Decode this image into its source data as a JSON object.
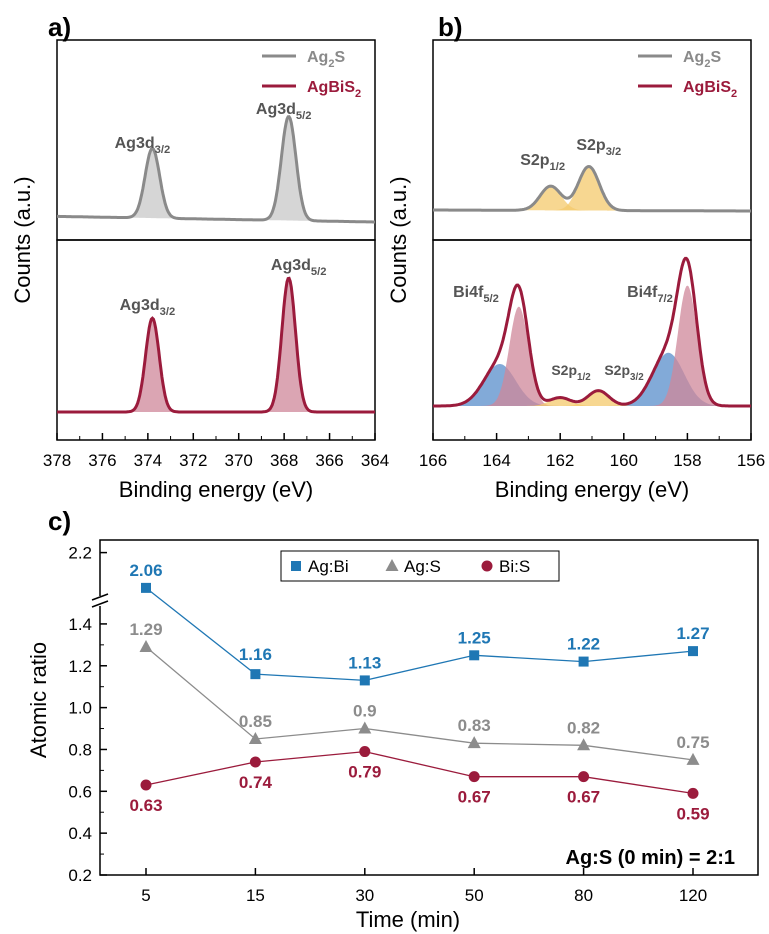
{
  "colors": {
    "ag2s_line": "#8a8a8a",
    "ag2s_fill": "#c8c8c8",
    "agbis2_line": "#9b1b3c",
    "agbis2_fill": "#cf8799",
    "s2p_fill": "#f4c96c",
    "bi_blue_fill": "#6c9bd1",
    "agbi": "#1f77b4",
    "ags": "#8c8c8c",
    "bis": "#9b1b3c"
  },
  "panel_a": {
    "label": "a)",
    "legend": [
      {
        "main": "Ag",
        "sub": "2",
        "rest": "S",
        "color_key": "ag2s_line"
      },
      {
        "main": "AgBiS",
        "sub": "2",
        "rest": "",
        "color_key": "agbis2_line"
      }
    ],
    "y_label": "Counts (a.u.)",
    "x_label": "Binding energy (eV)",
    "x_ticks": [
      "378",
      "376",
      "374",
      "372",
      "370",
      "368",
      "366",
      "364"
    ],
    "x_range": [
      378,
      364
    ],
    "top_peaks": [
      {
        "label": "Ag3d",
        "sub": "3/2",
        "position_ev": 373.8
      },
      {
        "label": "Ag3d",
        "sub": "5/2",
        "position_ev": 367.8
      }
    ],
    "bottom_peaks": [
      {
        "label": "Ag3d",
        "sub": "3/2",
        "position_ev": 373.8
      },
      {
        "label": "Ag3d",
        "sub": "5/2",
        "position_ev": 367.8
      }
    ]
  },
  "panel_b": {
    "label": "b)",
    "legend": [
      {
        "main": "Ag",
        "sub": "2",
        "rest": "S",
        "color_key": "ag2s_line"
      },
      {
        "main": "AgBiS",
        "sub": "2",
        "rest": "",
        "color_key": "agbis2_line"
      }
    ],
    "y_label": "Counts (a.u.)",
    "x_label": "Binding energy (eV)",
    "x_ticks": [
      "166",
      "164",
      "162",
      "160",
      "158",
      "156"
    ],
    "x_range": [
      166,
      156
    ],
    "top_peaks": [
      {
        "label": "S2p",
        "sub": "1/2",
        "position_ev": 162.3
      },
      {
        "label": "S2p",
        "sub": "3/2",
        "position_ev": 161.1
      }
    ],
    "bottom_peaks": [
      {
        "label": "Bi4f",
        "sub": "5/2",
        "position_ev": 163.3
      },
      {
        "label": "S2p",
        "sub": "1/2",
        "position_ev": 162.0
      },
      {
        "label": "S2p",
        "sub": "3/2",
        "position_ev": 160.8
      },
      {
        "label": "Bi4f",
        "sub": "7/2",
        "position_ev": 158.0
      }
    ]
  },
  "chart_data": {
    "type": "line",
    "panel_label": "c)",
    "xlabel": "Time (min)",
    "ylabel": "Atomic ratio",
    "categories": [
      "5",
      "15",
      "30",
      "50",
      "80",
      "120"
    ],
    "y_ticks_lower": [
      "0.2",
      "0.4",
      "0.6",
      "0.8",
      "1.0",
      "1.2",
      "1.4"
    ],
    "y_ticks_upper": [
      "2.2"
    ],
    "ylim_lower": [
      0.2,
      1.5
    ],
    "ylim_upper": [
      2.0,
      2.25
    ],
    "axis_break": true,
    "legend_position": "top-center",
    "annotation": "Ag:S (0 min) = 2:1",
    "series": [
      {
        "name": "Ag:Bi",
        "marker": "square",
        "color_key": "agbi",
        "values": [
          2.06,
          1.16,
          1.13,
          1.25,
          1.22,
          1.27
        ],
        "labels": [
          "2.06",
          "1.16",
          "1.13",
          "1.25",
          "1.22",
          "1.27"
        ]
      },
      {
        "name": "Ag:S",
        "marker": "triangle",
        "color_key": "ags",
        "values": [
          1.29,
          0.85,
          0.9,
          0.83,
          0.82,
          0.75
        ],
        "labels": [
          "1.29",
          "0.85",
          "0.9",
          "0.83",
          "0.82",
          "0.75"
        ]
      },
      {
        "name": "Bi:S",
        "marker": "circle",
        "color_key": "bis",
        "values": [
          0.63,
          0.74,
          0.79,
          0.67,
          0.67,
          0.59
        ],
        "labels": [
          "0.63",
          "0.74",
          "0.79",
          "0.67",
          "0.67",
          "0.59"
        ]
      }
    ]
  }
}
